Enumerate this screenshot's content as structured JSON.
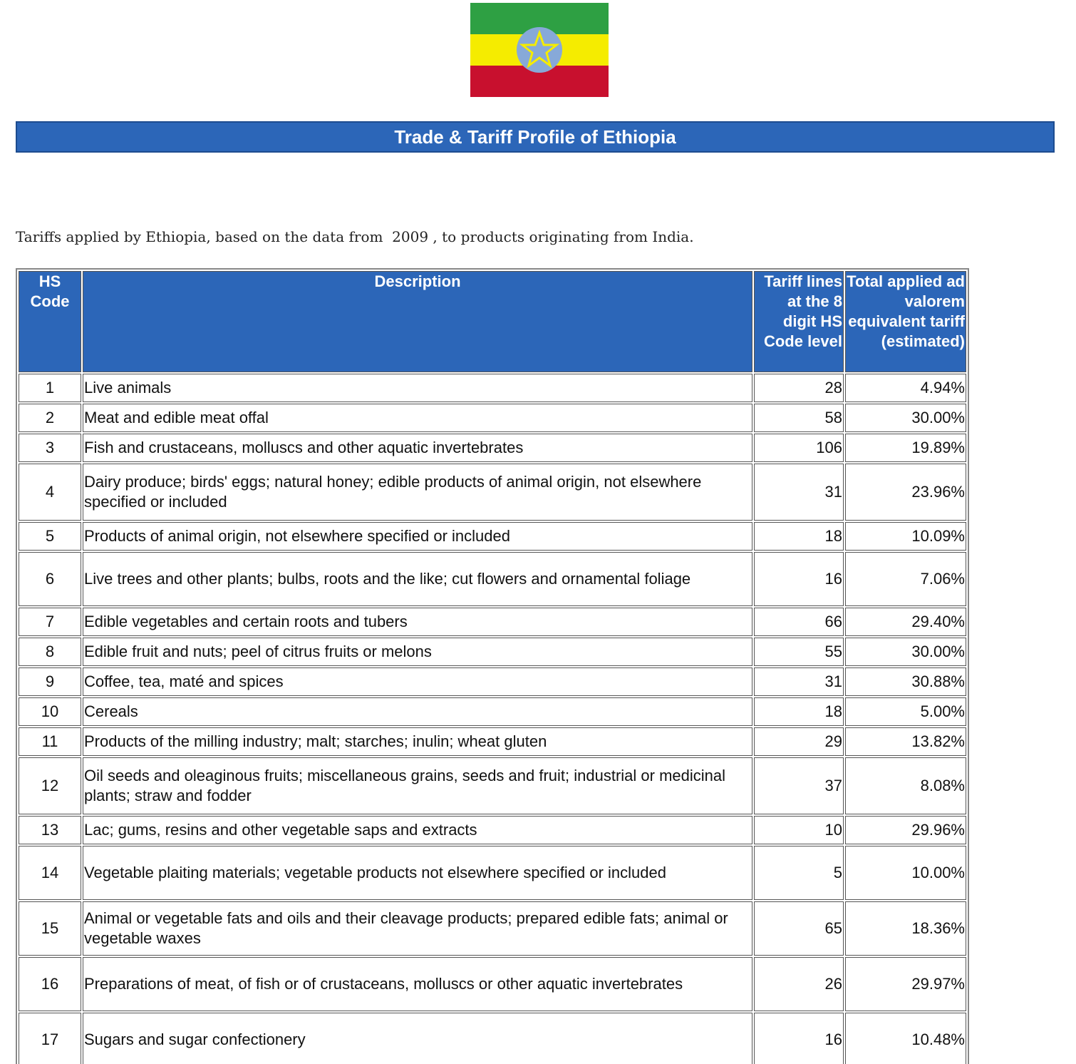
{
  "header": {
    "title": "Trade & Tariff Profile of Ethiopia"
  },
  "intro": "Tariffs applied by Ethiopia, based on the data from  2009 , to products originating from India.",
  "table": {
    "columns": [
      "HS Code",
      "Description",
      "Tariff lines at the 8 digit HS Code level",
      "Total applied ad valorem equivalent tariff (estimated)"
    ],
    "rows": [
      [
        "1",
        "Live animals",
        "28",
        "4.94%"
      ],
      [
        "2",
        "Meat and edible meat offal",
        "58",
        "30.00%"
      ],
      [
        "3",
        "Fish and crustaceans, molluscs and other aquatic invertebrates",
        "106",
        "19.89%"
      ],
      [
        "4",
        "Dairy produce; birds' eggs; natural honey; edible products of animal origin, not elsewhere specified or included",
        "31",
        "23.96%"
      ],
      [
        "5",
        "Products of animal origin, not elsewhere specified or included",
        "18",
        "10.09%"
      ],
      [
        "6",
        "Live trees and other plants; bulbs, roots and the like; cut flowers and ornamental foliage",
        "16",
        "7.06%"
      ],
      [
        "7",
        "Edible vegetables and certain roots and tubers",
        "66",
        "29.40%"
      ],
      [
        "8",
        "Edible fruit and nuts; peel of citrus fruits or melons",
        "55",
        "30.00%"
      ],
      [
        "9",
        "Coffee, tea, maté and spices",
        "31",
        "30.88%"
      ],
      [
        "10",
        "Cereals",
        "18",
        "5.00%"
      ],
      [
        "11",
        "Products of the milling industry; malt; starches; inulin; wheat gluten",
        "29",
        "13.82%"
      ],
      [
        "12",
        "Oil seeds and oleaginous fruits; miscellaneous grains, seeds and fruit; industrial or medicinal plants; straw and fodder",
        "37",
        "8.08%"
      ],
      [
        "13",
        "Lac; gums, resins and other vegetable saps and extracts",
        "10",
        "29.96%"
      ],
      [
        "14",
        "Vegetable plaiting materials; vegetable products not elsewhere specified or included",
        "5",
        "10.00%"
      ],
      [
        "15",
        "Animal or vegetable fats and oils and their cleavage products; prepared edible fats; animal or vegetable waxes",
        "65",
        "18.36%"
      ],
      [
        "16",
        "Preparations of meat, of fish or of crustaceans, molluscs or other aquatic invertebrates",
        "26",
        "29.97%"
      ],
      [
        "17",
        "Sugars and sugar confectionery",
        "16",
        "10.48%"
      ]
    ]
  }
}
